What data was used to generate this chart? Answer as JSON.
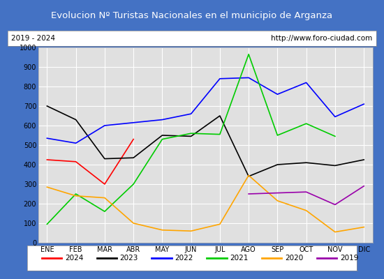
{
  "title": "Evolucion Nº Turistas Nacionales en el municipio de Arganza",
  "subtitle_left": "2019 - 2024",
  "subtitle_right": "http://www.foro-ciudad.com",
  "months": [
    "ENE",
    "FEB",
    "MAR",
    "ABR",
    "MAY",
    "JUN",
    "JUL",
    "AGO",
    "SEP",
    "OCT",
    "NOV",
    "DIC"
  ],
  "series": {
    "2024": [
      425,
      415,
      300,
      530,
      null,
      null,
      null,
      null,
      null,
      null,
      null,
      null
    ],
    "2023": [
      700,
      630,
      430,
      435,
      550,
      545,
      650,
      340,
      400,
      410,
      395,
      425
    ],
    "2022": [
      535,
      510,
      600,
      615,
      630,
      660,
      840,
      845,
      760,
      820,
      645,
      710
    ],
    "2021": [
      95,
      250,
      160,
      300,
      530,
      560,
      555,
      965,
      550,
      610,
      545,
      null
    ],
    "2020": [
      285,
      240,
      230,
      100,
      65,
      60,
      95,
      345,
      215,
      165,
      55,
      80
    ],
    "2019": [
      null,
      null,
      null,
      null,
      null,
      null,
      null,
      250,
      255,
      260,
      195,
      290
    ]
  },
  "colors": {
    "2024": "#ff0000",
    "2023": "#000000",
    "2022": "#0000ff",
    "2021": "#00cc00",
    "2020": "#ffa500",
    "2019": "#9900aa"
  },
  "ylim": [
    0,
    1000
  ],
  "yticks": [
    0,
    100,
    200,
    300,
    400,
    500,
    600,
    700,
    800,
    900,
    1000
  ],
  "title_bg": "#4472c4",
  "title_color": "#ffffff",
  "plot_bg": "#e0e0e0",
  "grid_color": "#ffffff",
  "fig_bg": "#4472c4",
  "white_bg": "#ffffff"
}
